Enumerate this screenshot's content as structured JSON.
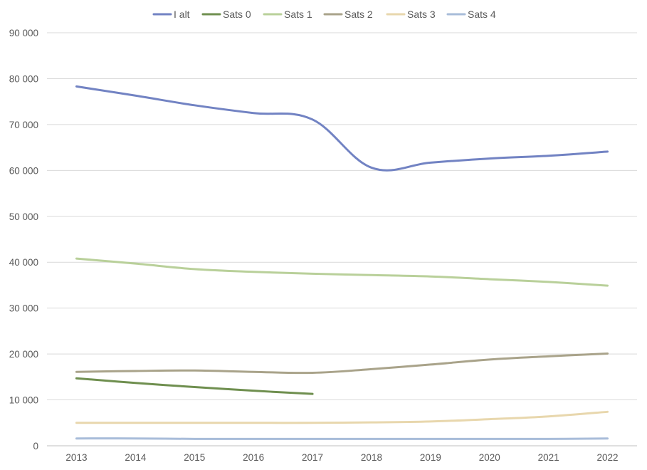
{
  "chart_data": {
    "type": "line",
    "title": "",
    "xlabel": "",
    "ylabel": "",
    "categories": [
      "2013",
      "2014",
      "2015",
      "2016",
      "2017",
      "2018",
      "2019",
      "2020",
      "2021",
      "2022"
    ],
    "ylim": [
      0,
      90000
    ],
    "y_ticks": [
      0,
      10000,
      20000,
      30000,
      40000,
      50000,
      60000,
      70000,
      80000,
      90000
    ],
    "y_tick_labels": [
      "0",
      "10 000",
      "20 000",
      "30 000",
      "40 000",
      "50 000",
      "60 000",
      "70 000",
      "80 000",
      "90 000"
    ],
    "grid": "horizontal",
    "legend_position": "top",
    "series": [
      {
        "name": "I alt",
        "color": "#7283c3",
        "values": [
          78300,
          76300,
          74200,
          72500,
          71100,
          60600,
          61700,
          62600,
          63200,
          64100
        ]
      },
      {
        "name": "Sats 0",
        "color": "#6f8f4f",
        "values": [
          14700,
          13700,
          12800,
          12000,
          11300,
          null,
          null,
          null,
          null,
          null
        ]
      },
      {
        "name": "Sats 1",
        "color": "#b9d09a",
        "values": [
          40800,
          39700,
          38500,
          37900,
          37500,
          37200,
          36900,
          36300,
          35700,
          34900
        ]
      },
      {
        "name": "Sats 2",
        "color": "#a9a38a",
        "values": [
          16100,
          16300,
          16400,
          16100,
          15900,
          16700,
          17700,
          18800,
          19500,
          20100
        ]
      },
      {
        "name": "Sats 3",
        "color": "#e8d7ad",
        "values": [
          5000,
          5000,
          5000,
          5000,
          5000,
          5100,
          5300,
          5800,
          6400,
          7400
        ]
      },
      {
        "name": "Sats 4",
        "color": "#a8bcd9",
        "values": [
          1600,
          1600,
          1500,
          1500,
          1500,
          1500,
          1500,
          1500,
          1500,
          1600
        ]
      }
    ]
  }
}
